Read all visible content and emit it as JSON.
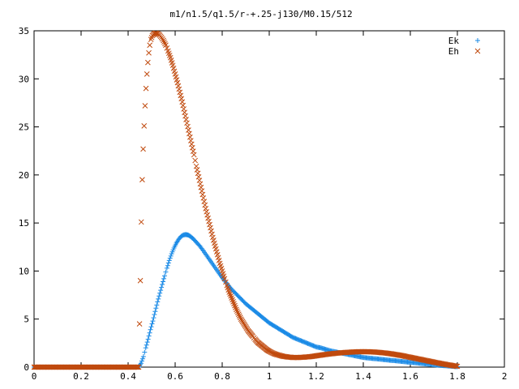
{
  "chart_data": {
    "type": "scatter",
    "title": "m1/n1.5/q1.5/r-+.25-j130/M0.15/512",
    "xlabel": "",
    "ylabel": "",
    "xlim": [
      0,
      2
    ],
    "ylim": [
      0,
      35
    ],
    "xticks": [
      "0",
      "0.2",
      "0.4",
      "0.6",
      "0.8",
      "1",
      "1.2",
      "1.4",
      "1.6",
      "1.8",
      "2"
    ],
    "yticks": [
      "0",
      "5",
      "10",
      "15",
      "20",
      "25",
      "30",
      "35"
    ],
    "grid": false,
    "legend_position": "top-right",
    "series": [
      {
        "name": "Ek",
        "marker": "plus",
        "color": "#1a8ae6",
        "points": [
          [
            0.0,
            0
          ],
          [
            0.1,
            0
          ],
          [
            0.2,
            0
          ],
          [
            0.3,
            0
          ],
          [
            0.4,
            0
          ],
          [
            0.445,
            0
          ],
          [
            0.455,
            0.4
          ],
          [
            0.465,
            1.1
          ],
          [
            0.475,
            2.0
          ],
          [
            0.485,
            2.9
          ],
          [
            0.495,
            3.9
          ],
          [
            0.505,
            4.8
          ],
          [
            0.515,
            5.8
          ],
          [
            0.525,
            6.8
          ],
          [
            0.535,
            7.7
          ],
          [
            0.545,
            8.6
          ],
          [
            0.555,
            9.5
          ],
          [
            0.565,
            10.3
          ],
          [
            0.575,
            11.1
          ],
          [
            0.585,
            11.8
          ],
          [
            0.595,
            12.4
          ],
          [
            0.605,
            12.9
          ],
          [
            0.615,
            13.3
          ],
          [
            0.625,
            13.6
          ],
          [
            0.635,
            13.75
          ],
          [
            0.645,
            13.8
          ],
          [
            0.655,
            13.75
          ],
          [
            0.665,
            13.6
          ],
          [
            0.675,
            13.4
          ],
          [
            0.69,
            13.0
          ],
          [
            0.705,
            12.6
          ],
          [
            0.72,
            12.1
          ],
          [
            0.74,
            11.4
          ],
          [
            0.76,
            10.7
          ],
          [
            0.78,
            10.0
          ],
          [
            0.8,
            9.3
          ],
          [
            0.82,
            8.7
          ],
          [
            0.84,
            8.1
          ],
          [
            0.86,
            7.6
          ],
          [
            0.88,
            7.1
          ],
          [
            0.9,
            6.6
          ],
          [
            0.92,
            6.2
          ],
          [
            0.94,
            5.8
          ],
          [
            0.96,
            5.4
          ],
          [
            0.98,
            5.0
          ],
          [
            1.0,
            4.6
          ],
          [
            1.02,
            4.3
          ],
          [
            1.04,
            4.0
          ],
          [
            1.06,
            3.7
          ],
          [
            1.08,
            3.4
          ],
          [
            1.1,
            3.1
          ],
          [
            1.12,
            2.9
          ],
          [
            1.14,
            2.7
          ],
          [
            1.16,
            2.5
          ],
          [
            1.18,
            2.3
          ],
          [
            1.2,
            2.1
          ],
          [
            1.22,
            2.0
          ],
          [
            1.24,
            1.85
          ],
          [
            1.26,
            1.7
          ],
          [
            1.28,
            1.6
          ],
          [
            1.3,
            1.5
          ],
          [
            1.32,
            1.4
          ],
          [
            1.34,
            1.3
          ],
          [
            1.36,
            1.2
          ],
          [
            1.38,
            1.1
          ],
          [
            1.4,
            1.0
          ],
          [
            1.42,
            0.95
          ],
          [
            1.44,
            0.9
          ],
          [
            1.46,
            0.85
          ],
          [
            1.48,
            0.8
          ],
          [
            1.5,
            0.75
          ],
          [
            1.52,
            0.7
          ],
          [
            1.54,
            0.65
          ],
          [
            1.56,
            0.6
          ],
          [
            1.58,
            0.55
          ],
          [
            1.6,
            0.5
          ],
          [
            1.62,
            0.45
          ],
          [
            1.64,
            0.4
          ],
          [
            1.66,
            0.35
          ],
          [
            1.68,
            0.3
          ],
          [
            1.7,
            0.25
          ],
          [
            1.72,
            0.2
          ],
          [
            1.74,
            0.16
          ],
          [
            1.76,
            0.12
          ],
          [
            1.78,
            0.08
          ],
          [
            1.8,
            0.04
          ]
        ]
      },
      {
        "name": "Eh",
        "marker": "cross",
        "color": "#c04a0e",
        "points": [
          [
            0.0,
            0
          ],
          [
            0.1,
            0
          ],
          [
            0.2,
            0
          ],
          [
            0.3,
            0
          ],
          [
            0.4,
            0
          ],
          [
            0.445,
            0
          ],
          [
            0.452,
            9.0
          ],
          [
            0.456,
            15.1
          ],
          [
            0.46,
            19.5
          ],
          [
            0.464,
            22.7
          ],
          [
            0.468,
            25.1
          ],
          [
            0.472,
            27.2
          ],
          [
            0.476,
            29.0
          ],
          [
            0.48,
            30.5
          ],
          [
            0.484,
            31.7
          ],
          [
            0.488,
            32.7
          ],
          [
            0.492,
            33.5
          ],
          [
            0.497,
            34.1
          ],
          [
            0.503,
            34.5
          ],
          [
            0.51,
            34.7
          ],
          [
            0.518,
            34.75
          ],
          [
            0.526,
            34.7
          ],
          [
            0.534,
            34.55
          ],
          [
            0.542,
            34.3
          ],
          [
            0.55,
            34.0
          ],
          [
            0.56,
            33.5
          ],
          [
            0.57,
            32.9
          ],
          [
            0.58,
            32.2
          ],
          [
            0.59,
            31.4
          ],
          [
            0.6,
            30.5
          ],
          [
            0.61,
            29.6
          ],
          [
            0.62,
            28.6
          ],
          [
            0.63,
            27.6
          ],
          [
            0.64,
            26.5
          ],
          [
            0.65,
            25.4
          ],
          [
            0.66,
            24.3
          ],
          [
            0.67,
            23.2
          ],
          [
            0.68,
            22.1
          ],
          [
            0.69,
            20.9
          ],
          [
            0.7,
            19.8
          ],
          [
            0.71,
            18.7
          ],
          [
            0.72,
            17.6
          ],
          [
            0.73,
            16.5
          ],
          [
            0.74,
            15.5
          ],
          [
            0.75,
            14.5
          ],
          [
            0.76,
            13.5
          ],
          [
            0.77,
            12.6
          ],
          [
            0.78,
            11.7
          ],
          [
            0.79,
            10.8
          ],
          [
            0.8,
            10.0
          ],
          [
            0.81,
            9.2
          ],
          [
            0.82,
            8.5
          ],
          [
            0.83,
            7.8
          ],
          [
            0.84,
            7.2
          ],
          [
            0.85,
            6.6
          ],
          [
            0.86,
            6.0
          ],
          [
            0.87,
            5.5
          ],
          [
            0.88,
            5.0
          ],
          [
            0.89,
            4.6
          ],
          [
            0.9,
            4.2
          ],
          [
            0.91,
            3.8
          ],
          [
            0.92,
            3.5
          ],
          [
            0.93,
            3.2
          ],
          [
            0.94,
            2.9
          ],
          [
            0.95,
            2.6
          ],
          [
            0.96,
            2.4
          ],
          [
            0.97,
            2.2
          ],
          [
            0.98,
            2.0
          ],
          [
            0.99,
            1.8
          ],
          [
            1.0,
            1.65
          ],
          [
            1.02,
            1.4
          ],
          [
            1.04,
            1.25
          ],
          [
            1.06,
            1.12
          ],
          [
            1.08,
            1.05
          ],
          [
            1.1,
            1.0
          ],
          [
            1.12,
            1.0
          ],
          [
            1.14,
            1.02
          ],
          [
            1.16,
            1.06
          ],
          [
            1.18,
            1.1
          ],
          [
            1.2,
            1.18
          ],
          [
            1.22,
            1.25
          ],
          [
            1.24,
            1.32
          ],
          [
            1.26,
            1.38
          ],
          [
            1.28,
            1.43
          ],
          [
            1.3,
            1.48
          ],
          [
            1.32,
            1.52
          ],
          [
            1.34,
            1.55
          ],
          [
            1.36,
            1.58
          ],
          [
            1.38,
            1.6
          ],
          [
            1.4,
            1.6
          ],
          [
            1.42,
            1.6
          ],
          [
            1.44,
            1.58
          ],
          [
            1.46,
            1.55
          ],
          [
            1.48,
            1.5
          ],
          [
            1.5,
            1.45
          ],
          [
            1.52,
            1.38
          ],
          [
            1.54,
            1.3
          ],
          [
            1.56,
            1.22
          ],
          [
            1.58,
            1.12
          ],
          [
            1.6,
            1.02
          ],
          [
            1.62,
            0.92
          ],
          [
            1.64,
            0.82
          ],
          [
            1.66,
            0.72
          ],
          [
            1.68,
            0.62
          ],
          [
            1.7,
            0.52
          ],
          [
            1.72,
            0.42
          ],
          [
            1.74,
            0.33
          ],
          [
            1.76,
            0.24
          ],
          [
            1.78,
            0.16
          ],
          [
            1.8,
            0.08
          ]
        ]
      }
    ]
  }
}
